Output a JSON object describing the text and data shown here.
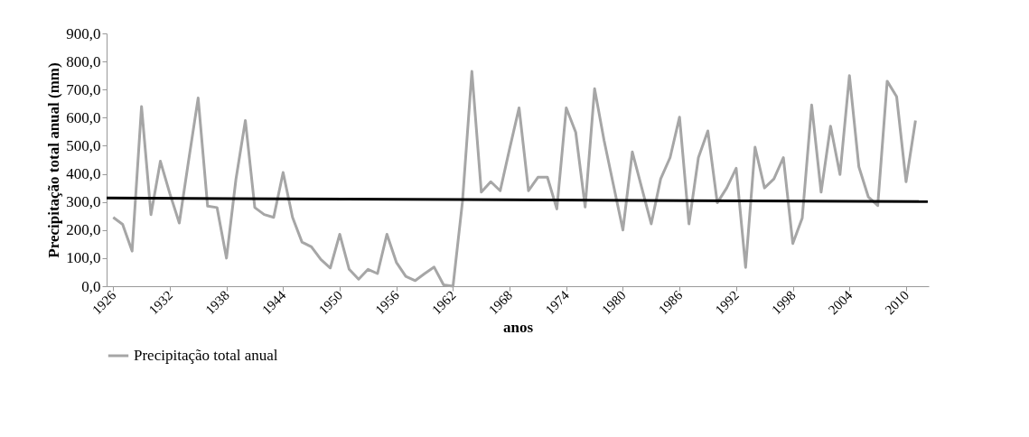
{
  "chart_data": {
    "type": "line",
    "xlabel": "anos",
    "ylabel": "Precipitação total anual (mm)",
    "x": [
      1926,
      1927,
      1928,
      1929,
      1930,
      1931,
      1932,
      1933,
      1934,
      1935,
      1936,
      1937,
      1938,
      1939,
      1940,
      1941,
      1942,
      1943,
      1944,
      1945,
      1946,
      1947,
      1948,
      1949,
      1950,
      1951,
      1952,
      1953,
      1954,
      1955,
      1956,
      1957,
      1958,
      1959,
      1960,
      1961,
      1962,
      1963,
      1964,
      1965,
      1966,
      1967,
      1968,
      1969,
      1970,
      1971,
      1972,
      1973,
      1974,
      1975,
      1976,
      1977,
      1978,
      1979,
      1980,
      1981,
      1982,
      1983,
      1984,
      1985,
      1986,
      1987,
      1988,
      1989,
      1990,
      1991,
      1992,
      1993,
      1994,
      1995,
      1996,
      1997,
      1998,
      1999,
      2000,
      2001,
      2002,
      2003,
      2004,
      2005,
      2006,
      2007,
      2008,
      2009,
      2010,
      2011
    ],
    "series": [
      {
        "name": "Precipitação total anual",
        "color": "#a6a6a6",
        "values": [
          245,
          220,
          125,
          640,
          255,
          445,
          330,
          225,
          450,
          670,
          285,
          280,
          100,
          380,
          590,
          280,
          255,
          245,
          405,
          245,
          157,
          140,
          95,
          65,
          185,
          60,
          25,
          60,
          45,
          185,
          85,
          35,
          20,
          45,
          68,
          5,
          0,
          300,
          765,
          335,
          372,
          340,
          490,
          635,
          340,
          388,
          388,
          275,
          635,
          548,
          282,
          703,
          520,
          360,
          200,
          478,
          350,
          222,
          382,
          458,
          602,
          222,
          458,
          553,
          297,
          350,
          420,
          67,
          495,
          350,
          382,
          458,
          152,
          243,
          645,
          335,
          570,
          398,
          750,
          425,
          318,
          287,
          730,
          675,
          372,
          590
        ]
      },
      {
        "type": "line",
        "color": "#000000",
        "x": [
          1925.3,
          2012.3
        ],
        "values": [
          314,
          301
        ]
      }
    ],
    "xlim": [
      1925.3,
      2012.4
    ],
    "xticks": [
      1926,
      1932,
      1938,
      1944,
      1950,
      1956,
      1962,
      1968,
      1974,
      1980,
      1986,
      1992,
      1998,
      2004,
      2010
    ],
    "ylim": [
      0,
      900
    ],
    "yticks": [
      {
        "value": 0,
        "label": "0,0"
      },
      {
        "value": 100,
        "label": "100,0"
      },
      {
        "value": 200,
        "label": "200,0"
      },
      {
        "value": 300,
        "label": "300,0"
      },
      {
        "value": 400,
        "label": "400,0"
      },
      {
        "value": 500,
        "label": "500,0"
      },
      {
        "value": 600,
        "label": "600,0"
      },
      {
        "value": 700,
        "label": "700,0"
      },
      {
        "value": 800,
        "label": "800,0"
      },
      {
        "value": 900,
        "label": "900,0"
      }
    ],
    "grid": false,
    "legend": "bottom left"
  }
}
